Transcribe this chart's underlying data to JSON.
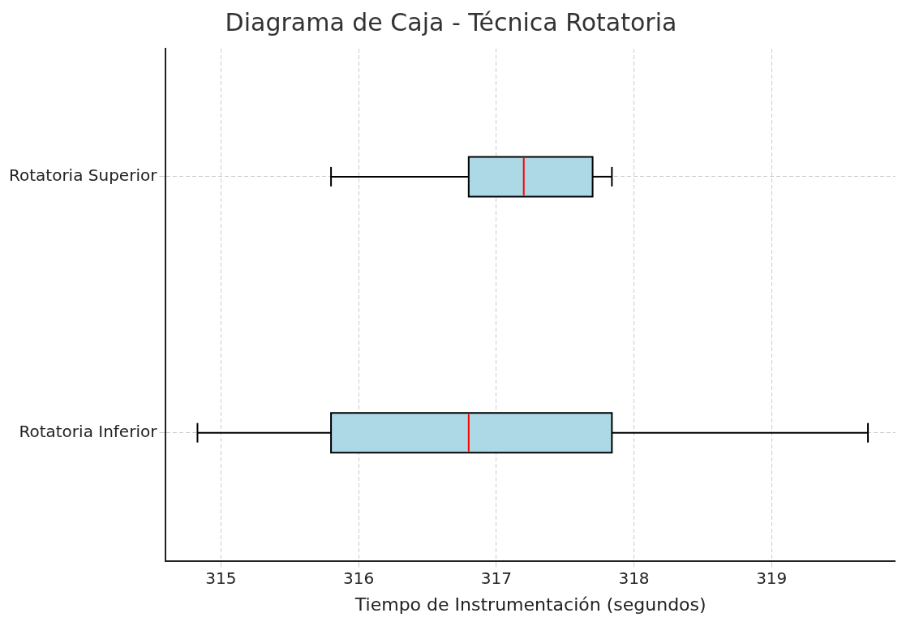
{
  "chart_data": {
    "type": "box",
    "title": "Diagrama de Caja - Técnica Rotatoria",
    "xlabel": "Tiempo de Instrumentación (segundos)",
    "orientation": "horizontal",
    "categories": [
      "Rotatoria Superior",
      "Rotatoria Inferior"
    ],
    "series": [
      {
        "color": "#add8e6",
        "boxes": [
          {
            "low": 315.8,
            "q1": 316.8,
            "median": 317.2,
            "q3": 317.7,
            "high": 317.84
          },
          {
            "low": 314.83,
            "q1": 315.8,
            "median": 316.8,
            "q3": 317.84,
            "high": 319.7
          }
        ]
      }
    ],
    "xlim": [
      314.6,
      319.9
    ],
    "xticks": [
      315,
      316,
      317,
      318,
      319
    ],
    "grid": true
  }
}
